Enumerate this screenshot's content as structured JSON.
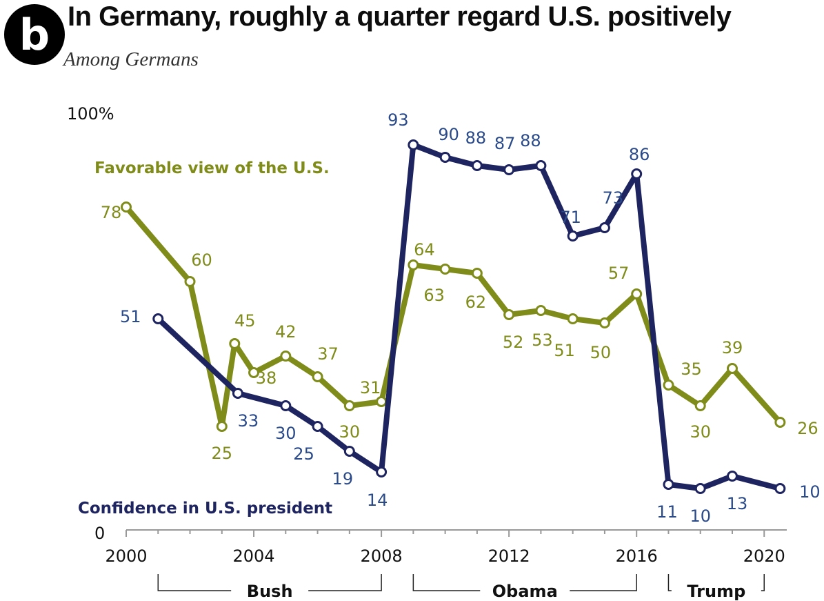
{
  "badge": "b",
  "chart_data": {
    "type": "line",
    "title": "In Germany, roughly a quarter regard U.S. positively",
    "subtitle": "Among Germans",
    "ylim": [
      0,
      100
    ],
    "y_top_label": "100%",
    "y_bottom_label": "0",
    "x_ticks": [
      2000,
      2004,
      2008,
      2012,
      2016,
      2020
    ],
    "x_tick_labels": [
      "2000",
      "2004",
      "2008",
      "2012",
      "2016",
      "2020"
    ],
    "xlim": [
      2000,
      2020.6
    ],
    "series": [
      {
        "name": "Favorable view of the U.S.",
        "color": "#7f8c1a",
        "x": [
          2000,
          2002,
          2003,
          2003.4,
          2004,
          2005,
          2006,
          2007,
          2008,
          2009,
          2010,
          2011,
          2012,
          2013,
          2014,
          2015,
          2016,
          2017,
          2018,
          2019,
          2020.5
        ],
        "values": [
          78,
          60,
          25,
          45,
          38,
          42,
          37,
          30,
          31,
          64,
          63,
          62,
          52,
          53,
          51,
          50,
          57,
          35,
          30,
          39,
          26
        ],
        "labels": [
          "78",
          "60",
          "25",
          "45",
          "38",
          "42",
          "37",
          "30",
          "31",
          "64",
          "63",
          "62",
          "52",
          "53",
          "51",
          "50",
          "57",
          "35",
          "30",
          "39",
          "26"
        ]
      },
      {
        "name": "Confidence in U.S. president",
        "color": "#1d2460",
        "label_color": "#2a4a8a",
        "x": [
          2001,
          2003.5,
          2005,
          2006,
          2007,
          2008,
          2009,
          2010,
          2011,
          2012,
          2013,
          2014,
          2015,
          2016,
          2017,
          2018,
          2019,
          2020.5
        ],
        "values": [
          51,
          33,
          30,
          25,
          19,
          14,
          93,
          90,
          88,
          87,
          88,
          71,
          73,
          86,
          11,
          10,
          13,
          10
        ],
        "labels": [
          "51",
          "33",
          "30",
          "25",
          "19",
          "14",
          "93",
          "90",
          "88",
          "87",
          "88",
          "71",
          "73",
          "86",
          "11",
          "10",
          "13",
          "10"
        ]
      }
    ],
    "eras": [
      {
        "name": "Bush",
        "from": 2001,
        "to": 2008
      },
      {
        "name": "Obama",
        "from": 2009,
        "to": 2016
      },
      {
        "name": "Trump",
        "from": 2017,
        "to": 2020
      }
    ]
  }
}
